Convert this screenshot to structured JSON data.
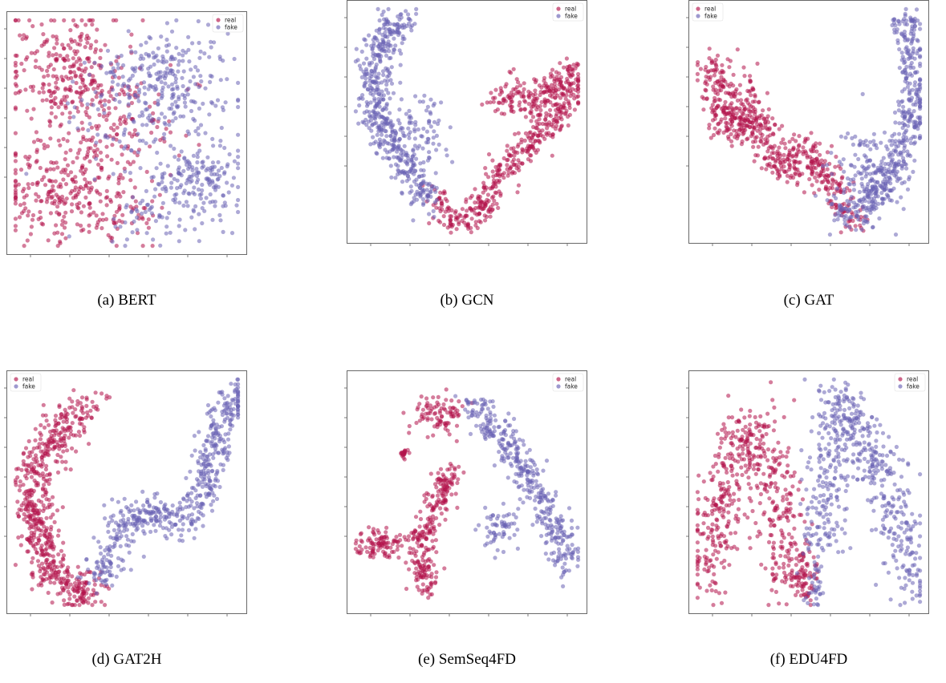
{
  "chart_data": [
    {
      "type": "scatter",
      "caption": "(a) BERT",
      "legend": [
        {
          "label": "real",
          "color": "#b3124a"
        },
        {
          "label": "fake",
          "color": "#6a63b5"
        }
      ],
      "legend_position": "top-right",
      "grid": false,
      "series": [
        {
          "name": "real",
          "color": "#b3124a",
          "clusters": [
            {
              "x": 0.22,
              "y": 0.78,
              "sx": 0.13,
              "sy": 0.12,
              "n": 260
            },
            {
              "x": 0.22,
              "y": 0.28,
              "sx": 0.15,
              "sy": 0.12,
              "n": 260
            },
            {
              "x": 0.45,
              "y": 0.55,
              "sx": 0.15,
              "sy": 0.12,
              "n": 120
            },
            {
              "x": 0.45,
              "y": 0.15,
              "sx": 0.12,
              "sy": 0.07,
              "n": 60
            }
          ]
        },
        {
          "name": "fake",
          "color": "#6a63b5",
          "clusters": [
            {
              "x": 0.68,
              "y": 0.72,
              "sx": 0.14,
              "sy": 0.11,
              "n": 240
            },
            {
              "x": 0.8,
              "y": 0.3,
              "sx": 0.11,
              "sy": 0.1,
              "n": 180
            },
            {
              "x": 0.52,
              "y": 0.55,
              "sx": 0.14,
              "sy": 0.14,
              "n": 70
            },
            {
              "x": 0.62,
              "y": 0.12,
              "sx": 0.1,
              "sy": 0.06,
              "n": 50
            }
          ]
        }
      ]
    },
    {
      "type": "scatter",
      "caption": "(b) GCN",
      "legend": [
        {
          "label": "real",
          "color": "#b3124a"
        },
        {
          "label": "fake",
          "color": "#6a63b5"
        }
      ],
      "legend_position": "top-right",
      "grid": false,
      "series": [
        {
          "name": "real",
          "color": "#b3124a",
          "path": [
            [
              0.36,
              0.16
            ],
            [
              0.45,
              0.05
            ],
            [
              0.55,
              0.1
            ],
            [
              0.62,
              0.24
            ],
            [
              0.7,
              0.33
            ],
            [
              0.8,
              0.43
            ],
            [
              0.9,
              0.52
            ],
            [
              0.97,
              0.62
            ],
            [
              0.95,
              0.72
            ],
            [
              0.85,
              0.62
            ],
            [
              0.78,
              0.58
            ],
            [
              0.7,
              0.64
            ],
            [
              0.62,
              0.58
            ]
          ],
          "width": 0.035,
          "n": 600
        },
        {
          "name": "fake",
          "color": "#6a63b5",
          "path": [
            [
              0.22,
              0.96
            ],
            [
              0.12,
              0.86
            ],
            [
              0.1,
              0.74
            ],
            [
              0.08,
              0.64
            ],
            [
              0.1,
              0.52
            ],
            [
              0.16,
              0.42
            ],
            [
              0.22,
              0.34
            ],
            [
              0.28,
              0.22
            ],
            [
              0.34,
              0.14
            ]
          ],
          "width": 0.04,
          "n": 520,
          "extra": [
            {
              "x": 0.3,
              "y": 0.47,
              "sx": 0.06,
              "sy": 0.09,
              "n": 70
            }
          ]
        }
      ]
    },
    {
      "type": "scatter",
      "caption": "(c) GAT",
      "legend": [
        {
          "label": "real",
          "color": "#b3124a"
        },
        {
          "label": "fake",
          "color": "#6a63b5"
        }
      ],
      "legend_position": "top-left",
      "grid": false,
      "series": [
        {
          "name": "real",
          "color": "#b3124a",
          "path": [
            [
              0.06,
              0.78
            ],
            [
              0.1,
              0.62
            ],
            [
              0.15,
              0.45
            ],
            [
              0.25,
              0.55
            ],
            [
              0.32,
              0.4
            ],
            [
              0.4,
              0.28
            ],
            [
              0.48,
              0.38
            ],
            [
              0.56,
              0.28
            ],
            [
              0.62,
              0.18
            ],
            [
              0.7,
              0.06
            ]
          ],
          "width": 0.04,
          "n": 560,
          "extra": [
            {
              "x": 0.2,
              "y": 0.6,
              "sx": 0.05,
              "sy": 0.08,
              "n": 60
            }
          ]
        },
        {
          "name": "fake",
          "color": "#6a63b5",
          "path": [
            [
              0.62,
              0.12
            ],
            [
              0.7,
              0.08
            ],
            [
              0.8,
              0.18
            ],
            [
              0.88,
              0.3
            ],
            [
              0.95,
              0.45
            ],
            [
              0.97,
              0.6
            ],
            [
              0.96,
              0.75
            ],
            [
              0.94,
              0.88
            ],
            [
              0.92,
              0.98
            ]
          ],
          "width": 0.035,
          "n": 460,
          "extra": [
            {
              "x": 0.75,
              "y": 0.28,
              "sx": 0.08,
              "sy": 0.09,
              "n": 120
            }
          ]
        }
      ]
    },
    {
      "type": "scatter",
      "caption": "(d) GAT2H",
      "legend": [
        {
          "label": "real",
          "color": "#b3124a"
        },
        {
          "label": "fake",
          "color": "#6a63b5"
        }
      ],
      "legend_position": "top-left",
      "grid": false,
      "series": [
        {
          "name": "real",
          "color": "#b3124a",
          "path": [
            [
              0.35,
              0.9
            ],
            [
              0.25,
              0.8
            ],
            [
              0.16,
              0.72
            ],
            [
              0.1,
              0.6
            ],
            [
              0.08,
              0.48
            ],
            [
              0.1,
              0.35
            ],
            [
              0.14,
              0.22
            ],
            [
              0.2,
              0.12
            ],
            [
              0.28,
              0.06
            ],
            [
              0.36,
              0.06
            ]
          ],
          "width": 0.045,
          "n": 620
        },
        {
          "name": "fake",
          "color": "#6a63b5",
          "path": [
            [
              0.38,
              0.1
            ],
            [
              0.44,
              0.25
            ],
            [
              0.5,
              0.38
            ],
            [
              0.58,
              0.42
            ],
            [
              0.68,
              0.4
            ],
            [
              0.76,
              0.36
            ],
            [
              0.84,
              0.5
            ],
            [
              0.88,
              0.65
            ],
            [
              0.93,
              0.82
            ],
            [
              1.0,
              0.95
            ]
          ],
          "width": 0.04,
          "n": 540
        }
      ]
    },
    {
      "type": "scatter",
      "caption": "(e) SemSeq4FD",
      "legend": [
        {
          "label": "real",
          "color": "#b3124a"
        },
        {
          "label": "fake",
          "color": "#6a63b5"
        }
      ],
      "legend_position": "top-right",
      "grid": false,
      "series": [
        {
          "name": "real",
          "color": "#b3124a",
          "path": [
            [
              0.32,
              0.05
            ],
            [
              0.3,
              0.18
            ],
            [
              0.28,
              0.28
            ],
            [
              0.35,
              0.4
            ],
            [
              0.4,
              0.55
            ],
            [
              0.45,
              0.6
            ]
          ],
          "width": 0.03,
          "n": 260,
          "extra": [
            {
              "x": 0.12,
              "y": 0.27,
              "sx": 0.06,
              "sy": 0.03,
              "n": 100
            },
            {
              "x": 0.38,
              "y": 0.85,
              "sx": 0.06,
              "sy": 0.05,
              "n": 90
            },
            {
              "x": 0.22,
              "y": 0.67,
              "sx": 0.01,
              "sy": 0.01,
              "n": 20
            }
          ]
        },
        {
          "name": "fake",
          "color": "#6a63b5",
          "path": [
            [
              0.52,
              0.9
            ],
            [
              0.62,
              0.78
            ],
            [
              0.72,
              0.66
            ],
            [
              0.78,
              0.55
            ],
            [
              0.84,
              0.45
            ],
            [
              0.9,
              0.33
            ],
            [
              0.94,
              0.18
            ]
          ],
          "width": 0.035,
          "n": 380,
          "extra": [
            {
              "x": 0.65,
              "y": 0.35,
              "sx": 0.04,
              "sy": 0.06,
              "n": 60
            }
          ]
        }
      ]
    },
    {
      "type": "scatter",
      "caption": "(f) EDU4FD",
      "legend": [
        {
          "label": "real",
          "color": "#b3124a"
        },
        {
          "label": "fake",
          "color": "#6a63b5"
        }
      ],
      "legend_position": "top-right",
      "grid": false,
      "series": [
        {
          "name": "real",
          "color": "#b3124a",
          "path": [
            [
              0.05,
              0.1
            ],
            [
              0.1,
              0.4
            ],
            [
              0.18,
              0.7
            ],
            [
              0.25,
              0.82
            ],
            [
              0.32,
              0.62
            ],
            [
              0.38,
              0.35
            ],
            [
              0.42,
              0.1
            ]
          ],
          "width": 0.06,
          "n": 540,
          "extra": [
            {
              "x": 0.48,
              "y": 0.12,
              "sx": 0.03,
              "sy": 0.06,
              "n": 60
            }
          ]
        },
        {
          "name": "fake",
          "color": "#6a63b5",
          "path": [
            [
              0.55,
              0.25
            ],
            [
              0.6,
              0.62
            ],
            [
              0.64,
              0.92
            ],
            [
              0.72,
              0.78
            ],
            [
              0.8,
              0.62
            ],
            [
              0.88,
              0.45
            ],
            [
              0.94,
              0.2
            ],
            [
              0.96,
              0.08
            ]
          ],
          "width": 0.055,
          "n": 560,
          "extra": [
            {
              "x": 0.53,
              "y": 0.08,
              "sx": 0.02,
              "sy": 0.04,
              "n": 30
            }
          ]
        }
      ]
    }
  ]
}
